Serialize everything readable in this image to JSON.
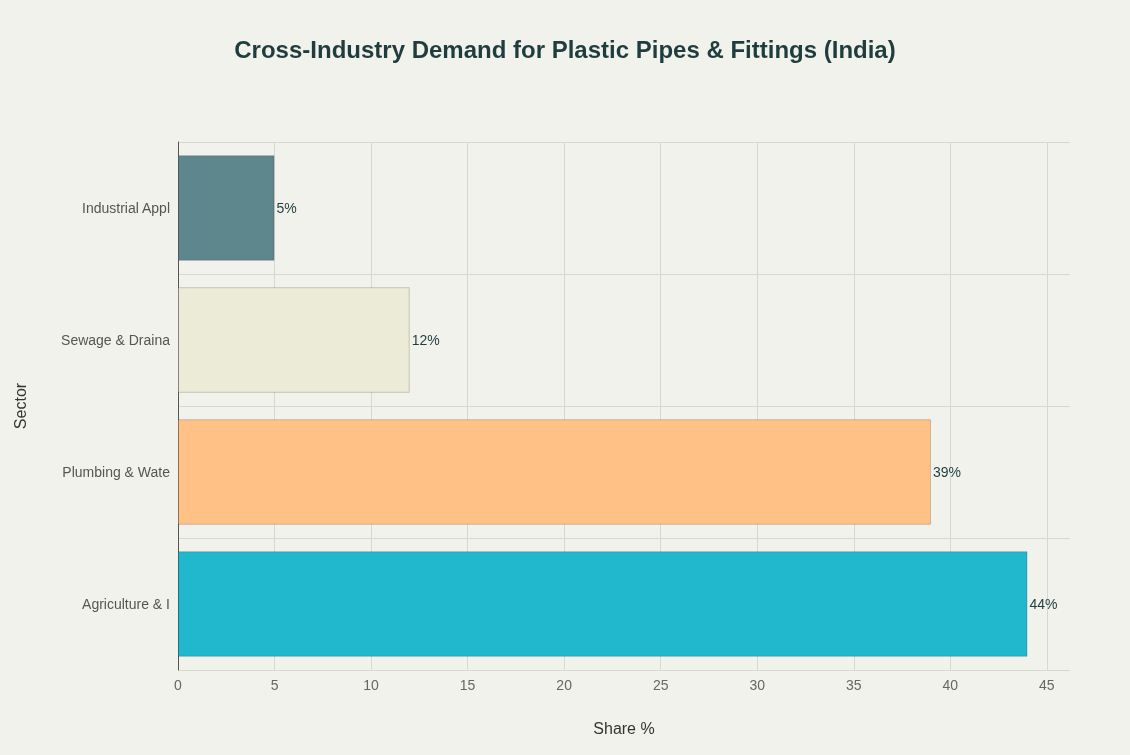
{
  "chart_data": {
    "type": "bar",
    "orientation": "horizontal",
    "title": "Cross-Industry Demand for Plastic Pipes & Fittings (India)",
    "xlabel": "Share %",
    "ylabel": "Sector",
    "categories": [
      "Industrial Appl",
      "Sewage & Draina",
      "Plumbing & Wate",
      "Agriculture & I"
    ],
    "values": [
      5,
      12,
      39,
      44
    ],
    "colors": [
      "#5d878c",
      "#ebebd7",
      "#ffc185",
      "#21b8cd"
    ],
    "value_labels": [
      "5%",
      "12%",
      "39%",
      "44%"
    ],
    "xlim": [
      0,
      46.2
    ],
    "xticks": [
      0,
      5,
      10,
      15,
      20,
      25,
      30,
      35,
      40,
      45
    ],
    "grid": true
  }
}
